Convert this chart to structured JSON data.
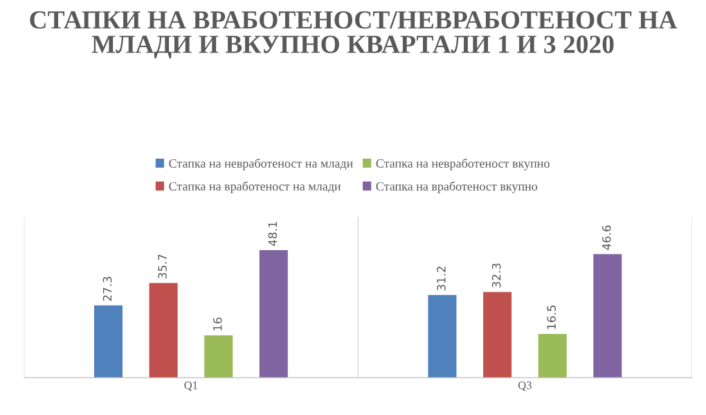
{
  "chart_data": {
    "type": "bar",
    "title": "СТАПКИ НА ВРАБОТЕНОСТ/НЕВРАБОТЕНОСТ НА МЛАДИ И ВКУПНО КВАРТАЛИ 1 И 3 2020",
    "categories": [
      "Q1",
      "Q3"
    ],
    "series": [
      {
        "name": "Стапка на невработеност на млади",
        "color": "#4f81bd",
        "values": [
          27.3,
          31.2
        ]
      },
      {
        "name": "Стапка на вработеност на млади",
        "color": "#c0504d",
        "values": [
          35.7,
          32.3
        ]
      },
      {
        "name": "Стапка на невработеност вкупно",
        "color": "#9bbb59",
        "values": [
          16,
          16.5
        ]
      },
      {
        "name": "Стапка на вработеност вкупно",
        "color": "#8064a2",
        "values": [
          48.1,
          46.6
        ]
      }
    ],
    "data_labels": true,
    "legend": "top",
    "grid": "x",
    "tick_labels": "x"
  }
}
